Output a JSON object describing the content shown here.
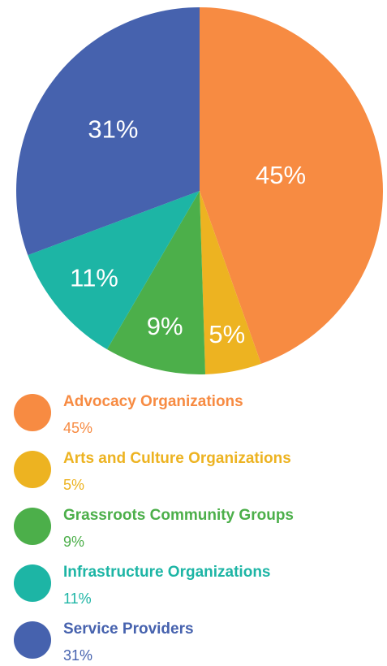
{
  "chart_data": {
    "type": "pie",
    "categories": [
      "Advocacy Organizations",
      "Arts and Culture Organizations",
      "Grassroots Community Groups",
      "Infrastructure Organizations",
      "Service Providers"
    ],
    "values": [
      45,
      5,
      9,
      11,
      31
    ],
    "value_labels": [
      "45%",
      "5%",
      "9%",
      "11%",
      "31%"
    ],
    "colors": [
      "#f78b42",
      "#edb321",
      "#4caf4a",
      "#1db5a5",
      "#4662ae"
    ]
  }
}
